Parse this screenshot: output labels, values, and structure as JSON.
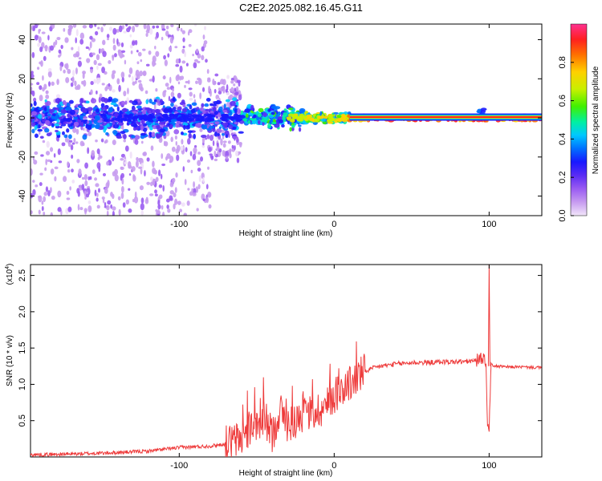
{
  "title": "C2E2.2025.082.16.45.G11",
  "colors": {
    "snr_line": "#ee3b3b",
    "background": "#ffffff",
    "colormap": [
      "#f0e0f8",
      "#c79cf0",
      "#9a5cf2",
      "#5a2cf4",
      "#1818ff",
      "#0070ff",
      "#00c8ff",
      "#00f0a0",
      "#40f000",
      "#c8f000",
      "#ffd000",
      "#ff7000",
      "#ff2020",
      "#ff3090"
    ]
  },
  "chart_data": [
    {
      "type": "heatmap",
      "xlabel": "Height of straight line (km)",
      "ylabel": "Frequency (Hz)",
      "xlim": [
        -196,
        134
      ],
      "ylim": [
        -50,
        48
      ],
      "xticks": [
        "-100",
        "0",
        "100"
      ],
      "yticks": [
        "-40",
        "-20",
        "0",
        "20",
        "40"
      ],
      "colorbar": {
        "label": "Normalized spectral amplitude",
        "range": [
          0.0,
          1.0
        ],
        "ticks": [
          "0.0",
          "0.2",
          "0.4",
          "0.6",
          "0.8"
        ]
      },
      "features": [
        {
          "x_range": [
            -196,
            -80
          ],
          "description": "diffuse low-amplitude scatter at all frequencies"
        },
        {
          "x_range": [
            -150,
            -60
          ],
          "freq_center": 0,
          "amplitude": 0.35
        },
        {
          "x_range": [
            -42,
            -36
          ],
          "freq_center": 5,
          "amplitude": 0.4
        },
        {
          "x_range": [
            -30,
            10
          ],
          "freq_center": 0,
          "amplitude": 0.8
        },
        {
          "x_range": [
            10,
            134
          ],
          "freq_center": 0,
          "amplitude": 0.95
        },
        {
          "x_range": [
            92,
            97
          ],
          "freq_center": 3,
          "amplitude": 0.4
        }
      ]
    },
    {
      "type": "line",
      "xlabel": "Height of straight line (km)",
      "ylabel": "SNR (10 * v/v)",
      "y_multiplier": "(x10",
      "y_exponent": "4",
      "xlim": [
        -196,
        134
      ],
      "ylim": [
        0,
        26500
      ],
      "xticks": [
        "-100",
        "0",
        "100"
      ],
      "yticks": [
        "0.5",
        "1.0",
        "1.5",
        "2.0",
        "2.5"
      ],
      "series": [
        {
          "x": [
            -196,
            -170,
            -140,
            -120,
            -100,
            -80,
            -70,
            -60,
            -55,
            -50,
            -45,
            -40,
            -35,
            -30,
            -25,
            -20,
            -15,
            -10,
            -5,
            0,
            5,
            10,
            15,
            20,
            25,
            30,
            40,
            50,
            60,
            70,
            80,
            90,
            95,
            97,
            98,
            99,
            100,
            101,
            102,
            105,
            110,
            120,
            134
          ],
          "y": [
            300,
            400,
            600,
            800,
            1300,
            1500,
            1800,
            2500,
            4000,
            3500,
            5500,
            3000,
            6500,
            4500,
            5000,
            6000,
            6000,
            6500,
            7000,
            8500,
            9500,
            10000,
            11000,
            11800,
            12200,
            12500,
            12800,
            13000,
            13000,
            13100,
            13100,
            13200,
            13500,
            14000,
            12000,
            5000,
            3000,
            12000,
            12600,
            12500,
            12400,
            12400,
            12300
          ]
        }
      ]
    }
  ]
}
